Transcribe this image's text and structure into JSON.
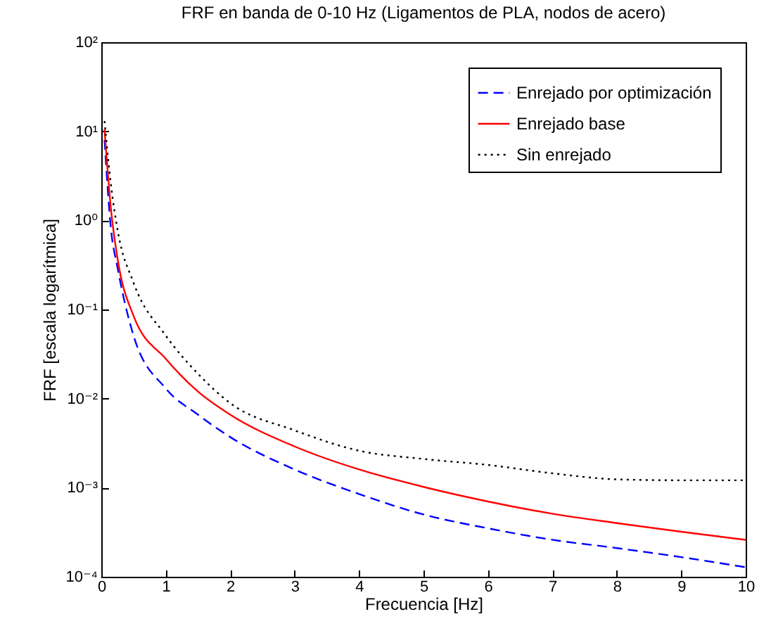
{
  "chart_data": {
    "type": "line",
    "title": "FRF en banda de 0-10 Hz (Ligamentos de PLA, nodos de acero)",
    "xlabel": "Frecuencia [Hz]",
    "ylabel": "FRF [escala logarítmica]",
    "x": [
      0.05,
      0.15,
      0.25,
      0.5,
      1,
      1.5,
      2,
      3,
      4,
      5,
      6,
      7,
      8,
      9,
      10
    ],
    "series": [
      {
        "name": "Enrejado por optimización",
        "color": "#0000ff",
        "line_style": "dashed",
        "values": [
          8,
          0.8,
          0.3,
          0.051,
          0.013,
          0.0066,
          0.0037,
          0.0016,
          0.00085,
          0.0005,
          0.00035,
          0.00026,
          0.00021,
          0.000166,
          0.000128
        ]
      },
      {
        "name": "Enrejado base",
        "color": "#ff0000",
        "line_style": "solid",
        "values": [
          10.5,
          1.33,
          0.38,
          0.085,
          0.028,
          0.012,
          0.0066,
          0.0029,
          0.0016,
          0.00102,
          0.0007,
          0.00051,
          0.0004,
          0.00032,
          0.00026
        ]
      },
      {
        "name": "Sin enrejado",
        "color": "#000000",
        "line_style": "dotted",
        "values": [
          13,
          2.5,
          0.8,
          0.2,
          0.051,
          0.019,
          0.0089,
          0.0044,
          0.0026,
          0.0021,
          0.0018,
          0.00145,
          0.00124,
          0.00121,
          0.00121
        ]
      }
    ],
    "log": "y",
    "xlim": [
      0,
      10
    ],
    "xticks": [
      0,
      1,
      2,
      3,
      4,
      5,
      6,
      7,
      8,
      9,
      10
    ],
    "ylim": [
      0.0001,
      100
    ],
    "yticks": [
      {
        "value": 0.0001,
        "label": "10⁻⁴"
      },
      {
        "value": 0.001,
        "label": "10⁻³"
      },
      {
        "value": 0.01,
        "label": "10⁻²"
      },
      {
        "value": 0.1,
        "label": "10⁻¹"
      },
      {
        "value": 1,
        "label": "10⁰"
      },
      {
        "value": 10,
        "label": "10¹"
      },
      {
        "value": 100,
        "label": "10²"
      }
    ],
    "grid": false,
    "legend": "top right"
  }
}
